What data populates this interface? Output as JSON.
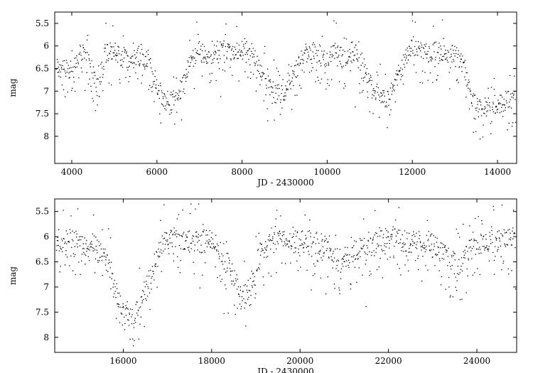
{
  "chart_data": [
    {
      "type": "scatter",
      "xlabel": "JD - 2430000",
      "ylabel": "mag",
      "xlim": [
        3600,
        14450
      ],
      "ylim": [
        8.6,
        5.25
      ],
      "y_inverted": true,
      "xticks": [
        4000,
        6000,
        8000,
        10000,
        12000,
        14000
      ],
      "yticks": [
        5.5,
        6,
        6.5,
        7,
        7.5,
        8
      ],
      "xtick_labels": [
        "4000",
        "6000",
        "8000",
        "10000",
        "12000",
        "14000"
      ],
      "ytick_labels": [
        "5.5",
        "6",
        "6.5",
        "7",
        "7.5",
        "8"
      ],
      "grid": false,
      "trend": [
        [
          4000,
          6.5
        ],
        [
          4200,
          6.1
        ],
        [
          4400,
          6.2
        ],
        [
          4600,
          6.9
        ],
        [
          4800,
          6.2
        ],
        [
          5000,
          6.1
        ],
        [
          5200,
          6.3
        ],
        [
          5400,
          6.3
        ],
        [
          5600,
          6.2
        ],
        [
          5800,
          6.3
        ],
        [
          6000,
          6.9
        ],
        [
          6200,
          7.2
        ],
        [
          6400,
          7.2
        ],
        [
          6600,
          6.9
        ],
        [
          6800,
          6.3
        ],
        [
          7000,
          6.1
        ],
        [
          7200,
          6.3
        ],
        [
          7400,
          6.1
        ],
        [
          7600,
          6.1
        ],
        [
          7800,
          6.2
        ],
        [
          8000,
          6.0
        ],
        [
          8200,
          6.1
        ],
        [
          8400,
          6.5
        ],
        [
          8600,
          6.7
        ],
        [
          8800,
          7.1
        ],
        [
          9000,
          7.0
        ],
        [
          9200,
          6.7
        ],
        [
          9400,
          6.3
        ],
        [
          9600,
          6.1
        ],
        [
          9800,
          6.2
        ],
        [
          10000,
          6.3
        ],
        [
          10200,
          6.1
        ],
        [
          10400,
          6.3
        ],
        [
          10600,
          6.1
        ],
        [
          10800,
          6.3
        ],
        [
          11000,
          6.8
        ],
        [
          11200,
          7.1
        ],
        [
          11400,
          7.2
        ],
        [
          11600,
          6.8
        ],
        [
          11800,
          6.4
        ],
        [
          12000,
          6.0
        ],
        [
          12200,
          6.1
        ],
        [
          12400,
          6.2
        ],
        [
          12600,
          6.1
        ],
        [
          12800,
          6.2
        ],
        [
          13000,
          6.2
        ],
        [
          13200,
          6.4
        ],
        [
          13400,
          7.2
        ],
        [
          13600,
          7.4
        ],
        [
          13800,
          7.3
        ],
        [
          14000,
          7.3
        ],
        [
          14200,
          7.2
        ],
        [
          14400,
          7.2
        ]
      ]
    },
    {
      "type": "scatter",
      "xlabel": "JD - 2430000",
      "ylabel": "mag",
      "xlim": [
        14450,
        24900
      ],
      "ylim": [
        8.3,
        5.25
      ],
      "y_inverted": true,
      "xticks": [
        16000,
        18000,
        20000,
        22000,
        24000
      ],
      "yticks": [
        5.5,
        6,
        6.5,
        7,
        7.5,
        8
      ],
      "xtick_labels": [
        "16000",
        "18000",
        "20000",
        "22000",
        "24000"
      ],
      "ytick_labels": [
        "5.5",
        "6",
        "6.5",
        "7",
        "7.5",
        "8"
      ],
      "grid": false,
      "trend": [
        [
          14500,
          6.2
        ],
        [
          14800,
          6.0
        ],
        [
          15100,
          6.2
        ],
        [
          15400,
          6.1
        ],
        [
          15700,
          6.6
        ],
        [
          16000,
          7.6
        ],
        [
          16300,
          7.5
        ],
        [
          16600,
          6.8
        ],
        [
          16900,
          6.1
        ],
        [
          17200,
          6.0
        ],
        [
          17500,
          6.1
        ],
        [
          17800,
          6.1
        ],
        [
          18100,
          6.1
        ],
        [
          18400,
          6.6
        ],
        [
          18700,
          7.3
        ],
        [
          18900,
          6.9
        ],
        [
          19100,
          6.3
        ],
        [
          19400,
          6.1
        ],
        [
          19700,
          6.1
        ],
        [
          20000,
          6.1
        ],
        [
          20300,
          6.1
        ],
        [
          20600,
          6.2
        ],
        [
          20900,
          6.5
        ],
        [
          21200,
          6.3
        ],
        [
          21500,
          6.2
        ],
        [
          21800,
          6.1
        ],
        [
          22100,
          6.0
        ],
        [
          22400,
          6.1
        ],
        [
          22700,
          6.1
        ],
        [
          23000,
          6.1
        ],
        [
          23300,
          6.4
        ],
        [
          23600,
          6.6
        ],
        [
          23900,
          6.2
        ],
        [
          24200,
          6.1
        ],
        [
          24500,
          6.1
        ],
        [
          24800,
          6.0
        ]
      ]
    }
  ]
}
